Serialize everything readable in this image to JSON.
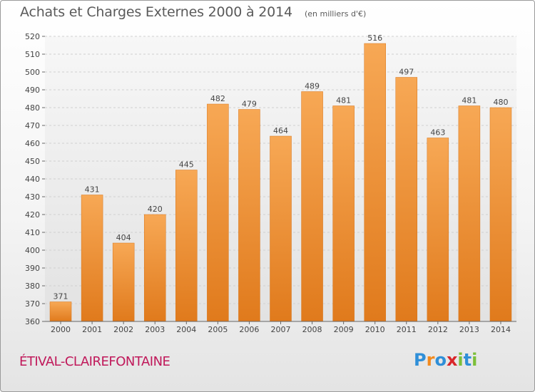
{
  "header": {
    "title": "Achats et Charges Externes 2000 à 2014",
    "subtitle": "(en milliers d'€)"
  },
  "footer": {
    "commune": "ÉTIVAL-CLAIREFONTAINE",
    "logo_letters": [
      "P",
      "r",
      "o",
      "x",
      "i",
      "t",
      "i"
    ],
    "logo_colors": [
      "#2f8fd8",
      "#f28a1e",
      "#2f8fd8",
      "#d9262a",
      "#7cbf3a",
      "#2f8fd8",
      "#7cbf3a"
    ]
  },
  "chart_data": {
    "type": "bar",
    "title": "Achats et Charges Externes 2000 à 2014",
    "subtitle": "(en milliers d'€)",
    "categories": [
      "2000",
      "2001",
      "2002",
      "2003",
      "2004",
      "2005",
      "2006",
      "2007",
      "2008",
      "2009",
      "2010",
      "2011",
      "2012",
      "2013",
      "2014"
    ],
    "values": [
      371,
      431,
      404,
      420,
      445,
      482,
      479,
      464,
      489,
      481,
      516,
      497,
      463,
      481,
      480
    ],
    "ylim": [
      360,
      520
    ],
    "yticks": [
      360,
      370,
      380,
      390,
      400,
      410,
      420,
      430,
      440,
      450,
      460,
      470,
      480,
      490,
      500,
      510,
      520
    ],
    "grid": true,
    "bar_color": "#f0902e",
    "bar_color_top": "#f7a855",
    "bar_color_bottom": "#e07a1c"
  }
}
